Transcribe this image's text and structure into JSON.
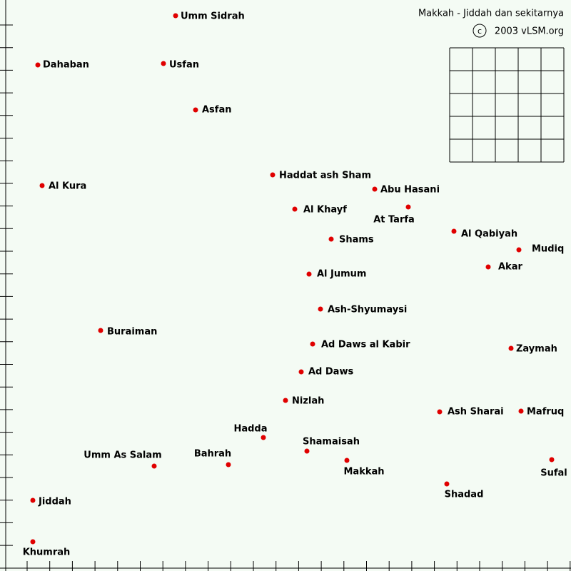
{
  "header": {
    "title": "Makkah - Jiddah dan sekitarnya",
    "copyright": "2003 vLSM.org"
  },
  "places": [
    "Umm Sidrah",
    "Dahaban",
    "Usfan",
    "Asfan",
    "Haddat ash Sham",
    "Al Kura",
    "Abu Hasani",
    "Al Khayf",
    "At Tarfa",
    "Al Qabiyah",
    "Shams",
    "Mudiq",
    "Akar",
    "Al Jumum",
    "Ash-Shyumaysi",
    "Buraiman",
    "Ad Daws al Kabir",
    "Zaymah",
    "Ad Daws",
    "Nizlah",
    "Ash Sharai",
    "Mafruq",
    "Hadda",
    "Shamaisah",
    "Umm As Salam",
    "Bahrah",
    "Makkah",
    "Sufal",
    "Shadad",
    "Jiddah",
    "Khumrah"
  ]
}
